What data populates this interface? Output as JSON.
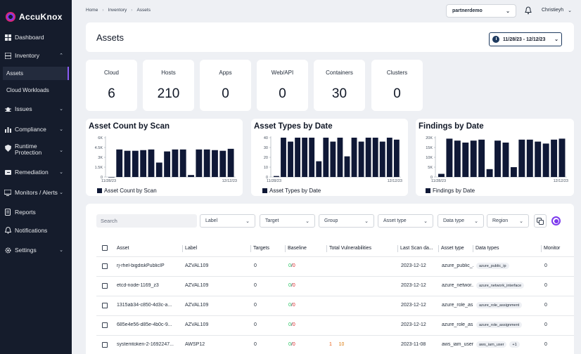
{
  "brand": {
    "name": "AccuKnox"
  },
  "sidebar": {
    "items": [
      {
        "label": "Dashboard"
      },
      {
        "label": "Inventory"
      },
      {
        "label": "Issues"
      },
      {
        "label": "Compliance"
      },
      {
        "label": "Runtime Protection"
      },
      {
        "label": "Remediation"
      },
      {
        "label": "Monitors / Alerts"
      },
      {
        "label": "Reports"
      },
      {
        "label": "Notifications"
      },
      {
        "label": "Settings"
      }
    ],
    "inventory_sub": [
      {
        "label": "Assets",
        "active": true
      },
      {
        "label": "Cloud Workloads"
      }
    ]
  },
  "breadcrumb": [
    "Home",
    "Inventory",
    "Assets"
  ],
  "header": {
    "tenant": "partnerdemo",
    "user": "Christieyh"
  },
  "page": {
    "title": "Assets",
    "date_range": "11/28/23 - 12/12/23"
  },
  "stats": [
    {
      "label": "Cloud",
      "value": "6"
    },
    {
      "label": "Hosts",
      "value": "210"
    },
    {
      "label": "Apps",
      "value": "0"
    },
    {
      "label": "Web/API",
      "value": "0"
    },
    {
      "label": "Containers",
      "value": "30"
    },
    {
      "label": "Clusters",
      "value": "0"
    }
  ],
  "chart_data": [
    {
      "type": "bar",
      "title": "Asset Count by Scan",
      "legend": "Asset Count by Scan",
      "yticks": [
        "0",
        "1.5K",
        "3K",
        "4.5K",
        "6K"
      ],
      "ylim": [
        0,
        6000
      ],
      "x_start": "11/28/23",
      "x_end": "12/12/23",
      "values": [
        0,
        4200,
        4000,
        4000,
        4100,
        4200,
        2200,
        3900,
        4200,
        4200,
        300,
        4200,
        4200,
        4100,
        4000,
        4300
      ],
      "color": "#0f1836"
    },
    {
      "type": "bar",
      "title": "Asset Types by Date",
      "legend": "Asset Types by Date",
      "yticks": [
        "0",
        "10",
        "20",
        "30",
        "40"
      ],
      "ylim": [
        0,
        40
      ],
      "x_start": "11/28/23",
      "x_end": "12/12/23",
      "values": [
        1,
        40,
        36,
        40,
        40,
        40,
        16,
        40,
        36,
        40,
        21,
        40,
        36,
        40,
        40,
        36,
        40,
        38
      ],
      "color": "#0f1836"
    },
    {
      "type": "bar",
      "title": "Findings by Date",
      "legend": "Findings by Date",
      "yticks": [
        "0",
        "5K",
        "10K",
        "15K",
        "20K"
      ],
      "ylim": [
        0,
        20000
      ],
      "x_start": "11/28/23",
      "x_end": "12/12/23",
      "values": [
        1600,
        19500,
        18500,
        17500,
        18500,
        19000,
        4000,
        18500,
        17500,
        5000,
        19000,
        19000,
        18000,
        17000,
        19000,
        19500
      ],
      "color": "#0f1836"
    }
  ],
  "filters": {
    "search_placeholder": "Search",
    "dropdowns": [
      "Label",
      "Target",
      "Group",
      "Asset type",
      "Data type",
      "Region"
    ]
  },
  "table": {
    "columns": [
      "Asset",
      "Label",
      "Targets",
      "Baseline",
      "Total Vulnerabilities",
      "Last Scan da...",
      "Asset type",
      "Data types",
      "Monitor"
    ],
    "rows": [
      {
        "asset": "rj-rhel-bigdiskPublicIP",
        "label": "AZVAL109",
        "targets": "0",
        "baseline_ok": "0",
        "baseline_fail": "0",
        "vuln_high": "",
        "vuln_med": "",
        "last_scan": "2023-12-12",
        "asset_type": "azure_public_...",
        "data_type": "azure_public_ip",
        "data_extra": "",
        "monitor": "0"
      },
      {
        "asset": "etcd-node-1169_z3",
        "label": "AZVAL109",
        "targets": "0",
        "baseline_ok": "0",
        "baseline_fail": "0",
        "vuln_high": "",
        "vuln_med": "",
        "last_scan": "2023-12-12",
        "asset_type": "azure_networ...",
        "data_type": "azure_network_interface",
        "data_extra": "",
        "monitor": "0"
      },
      {
        "asset": "1315ab34-c850-4d3c-a...",
        "label": "AZVAL109",
        "targets": "0",
        "baseline_ok": "0",
        "baseline_fail": "0",
        "vuln_high": "",
        "vuln_med": "",
        "last_scan": "2023-12-12",
        "asset_type": "azure_role_as...",
        "data_type": "azure_role_assignment",
        "data_extra": "",
        "monitor": "0"
      },
      {
        "asset": "685e4e56-d85e-4b0c-9...",
        "label": "AZVAL109",
        "targets": "0",
        "baseline_ok": "0",
        "baseline_fail": "0",
        "vuln_high": "",
        "vuln_med": "",
        "last_scan": "2023-12-12",
        "asset_type": "azure_role_as...",
        "data_type": "azure_role_assignment",
        "data_extra": "",
        "monitor": "0"
      },
      {
        "asset": "systemtoken-2-1692247...",
        "label": "AWSP12",
        "targets": "0",
        "baseline_ok": "0",
        "baseline_fail": "0",
        "vuln_high": "1",
        "vuln_med": "10",
        "last_scan": "2023-11-08",
        "asset_type": "aws_iam_user",
        "data_type": "aws_iam_user",
        "data_extra": "+1",
        "monitor": "0"
      }
    ]
  }
}
